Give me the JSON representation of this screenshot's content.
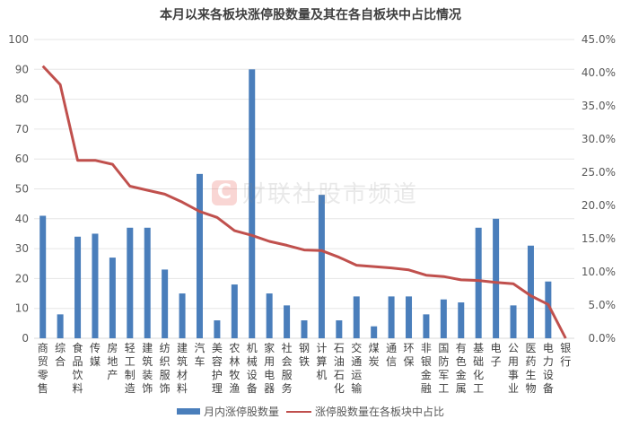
{
  "title": "本月以来各板块涨停股数量及其在各自板块中占比情况",
  "watermark": {
    "logo": "C",
    "text": "财联社股市频道"
  },
  "legend": {
    "bar_label": "月内涨停股数量",
    "line_label": "涨停股数量在各板块中占比"
  },
  "colors": {
    "bar": "#4a7ebb",
    "line": "#c0504d",
    "grid": "#e6e6e6"
  },
  "axes": {
    "left_ticks": [
      "0",
      "10",
      "20",
      "30",
      "40",
      "50",
      "60",
      "70",
      "80",
      "90",
      "100"
    ],
    "right_ticks": [
      "0.0%",
      "5.0%",
      "10.0%",
      "15.0%",
      "20.0%",
      "25.0%",
      "30.0%",
      "35.0%",
      "40.0%",
      "45.0%"
    ]
  },
  "chart_data": {
    "type": "bar+line",
    "title": "本月以来各板块涨停股数量及其在各自板块中占比情况",
    "categories": [
      "商贸零售",
      "综合",
      "食品饮料",
      "传媒",
      "房地产",
      "轻工制造",
      "建筑装饰",
      "纺织服饰",
      "建筑材料",
      "汽车",
      "美容护理",
      "农林牧渔",
      "机械设备",
      "家用电器",
      "社会服务",
      "钢铁",
      "计算机",
      "石油石化",
      "交通运输",
      "煤炭",
      "通信",
      "环保",
      "非银金融",
      "国防军工",
      "有色金属",
      "基础化工",
      "电子",
      "公用事业",
      "医药生物",
      "电力设备",
      "银行"
    ],
    "series": [
      {
        "name": "月内涨停股数量",
        "type": "bar",
        "axis": "left",
        "values": [
          41,
          8,
          34,
          35,
          27,
          37,
          37,
          23,
          15,
          55,
          6,
          18,
          90,
          15,
          11,
          6,
          48,
          6,
          14,
          4,
          14,
          14,
          8,
          13,
          12,
          37,
          40,
          11,
          31,
          19,
          0
        ]
      },
      {
        "name": "涨停股数量在各板块中占比",
        "type": "line",
        "axis": "right",
        "unit": "%",
        "values": [
          41.0,
          38.2,
          26.8,
          26.8,
          26.2,
          22.9,
          22.3,
          21.7,
          20.5,
          19.1,
          18.2,
          16.2,
          15.5,
          14.6,
          14.0,
          13.3,
          13.2,
          12.2,
          11.0,
          10.8,
          10.6,
          10.3,
          9.5,
          9.3,
          8.8,
          8.7,
          8.4,
          8.2,
          6.4,
          5.1,
          0.0
        ]
      }
    ],
    "ylim_left": [
      0,
      100
    ],
    "ylim_right": [
      0,
      45
    ],
    "grid": true,
    "legend_position": "bottom"
  }
}
